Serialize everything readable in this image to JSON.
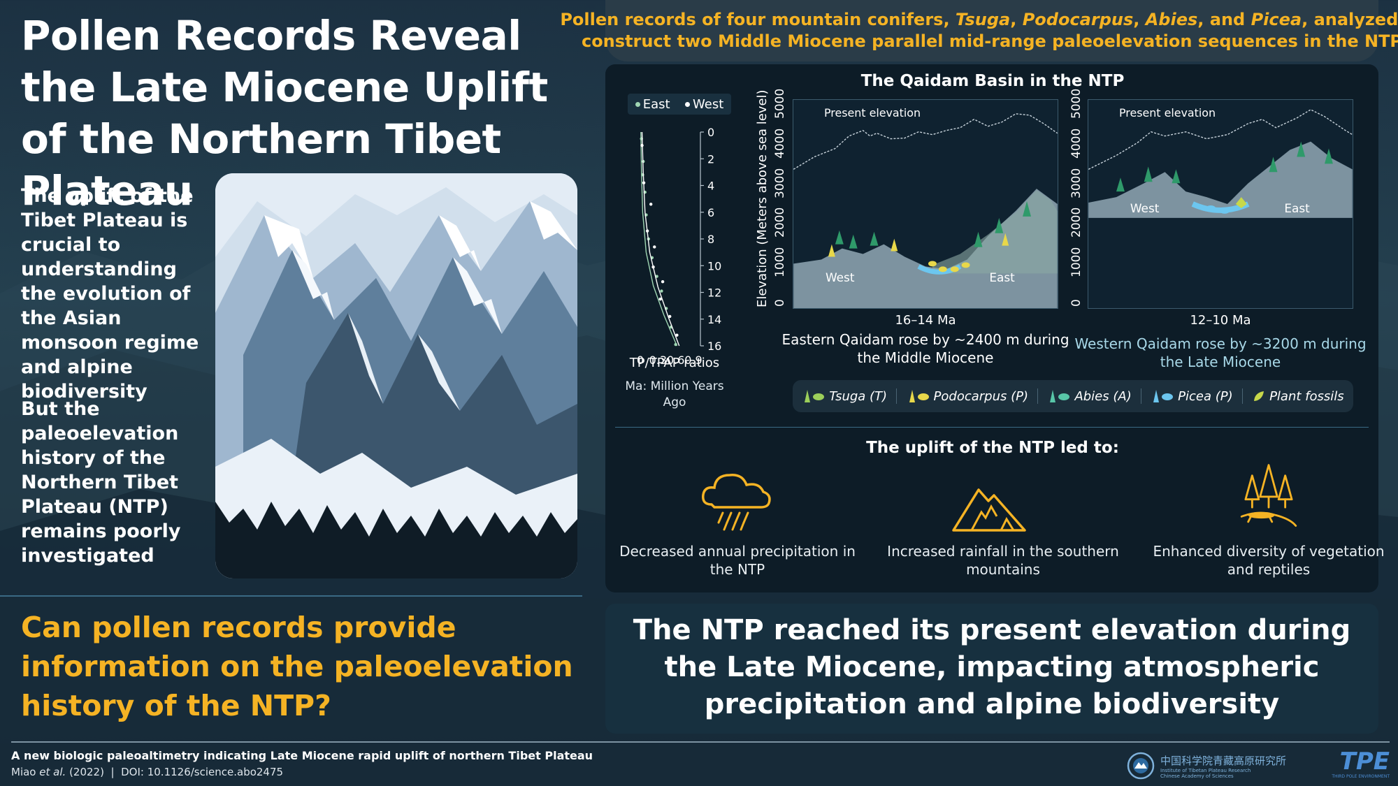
{
  "title": "Pollen Records Reveal the Late Miocene Uplift of the Northern Tibet Plateau",
  "intro": "The uplift of the Tibet Plateau is crucial to understanding the evolution of the Asian monsoon regime and alpine biodiversity",
  "intro_2": "But the paleoelevation history of the Northern Tibet Plateau (NTP) remains poorly investigated",
  "question": "Can pollen records provide information on the paleoelevation history of the NTP?",
  "header": {
    "line1_prefix": "Pollen records of four mountain conifers,",
    "taxa": [
      "Tsuga",
      "Podocarpus",
      "Abies",
      "Picea"
    ],
    "line1_and": "and",
    "line1_suffix": ", analyzed to",
    "line2": "construct two Middle Miocene parallel mid-range paleoelevation sequences in the NTP"
  },
  "basin_title": "The Qaidam Basin in the NTP",
  "ratio_chart": {
    "legend": [
      "East",
      "West"
    ],
    "x_ticks": [
      "0",
      "0.3",
      "0.6",
      "0.9"
    ],
    "y_ticks": [
      "0",
      "2",
      "4",
      "6",
      "8",
      "10",
      "12",
      "14",
      "16"
    ],
    "xlabel": "TP/TPAP ratios",
    "note": "Ma: Million Years Ago"
  },
  "chart_data": {
    "type": "scatter",
    "xlabel": "TP/TPAP ratios",
    "ylabel": "Ma",
    "xlim": [
      0,
      0.9
    ],
    "ylim": [
      0,
      16
    ],
    "y_inverted": true,
    "series": [
      {
        "name": "East",
        "points": [
          [
            0.02,
            0.5
          ],
          [
            0.05,
            2.2
          ],
          [
            0.04,
            3.2
          ],
          [
            0.08,
            4.5
          ],
          [
            0.1,
            6.2
          ],
          [
            0.14,
            8.0
          ],
          [
            0.2,
            9.4
          ],
          [
            0.28,
            10.8
          ],
          [
            0.36,
            11.9
          ],
          [
            0.44,
            13.2
          ],
          [
            0.52,
            14.6
          ],
          [
            0.6,
            15.9
          ]
        ],
        "trend": [
          [
            0.01,
            0
          ],
          [
            0.02,
            3
          ],
          [
            0.04,
            6
          ],
          [
            0.1,
            9
          ],
          [
            0.22,
            11.5
          ],
          [
            0.4,
            13.7
          ],
          [
            0.62,
            16
          ]
        ]
      },
      {
        "name": "West",
        "points": [
          [
            0.03,
            1.0
          ],
          [
            0.06,
            3.8
          ],
          [
            0.18,
            5.4
          ],
          [
            0.12,
            7.4
          ],
          [
            0.24,
            8.6
          ],
          [
            0.22,
            10.1
          ],
          [
            0.38,
            11.2
          ],
          [
            0.34,
            12.5
          ],
          [
            0.5,
            13.8
          ],
          [
            0.62,
            15.2
          ]
        ],
        "trend": [
          [
            0.03,
            0
          ],
          [
            0.05,
            3
          ],
          [
            0.08,
            6
          ],
          [
            0.16,
            9
          ],
          [
            0.3,
            11.6
          ],
          [
            0.48,
            13.9
          ],
          [
            0.66,
            16
          ]
        ]
      }
    ]
  },
  "elevation_chart": {
    "ylabel": "Elevation (Meters above sea level)",
    "y_ticks": [
      "0",
      "1000",
      "2000",
      "3000",
      "4000",
      "5000"
    ],
    "present_label": "Present elevation",
    "east_panel": {
      "left": "West",
      "right": "East",
      "period": "16–14 Ma",
      "caption": "Eastern Qaidam rose by ~2400 m during the Middle Miocene"
    },
    "west_panel": {
      "left": "West",
      "right": "East",
      "period": "12–10 Ma",
      "caption": "Western Qaidam rose by ~3200 m during the Late Miocene"
    }
  },
  "pollen_legend": [
    {
      "label": "Tsuga (T)",
      "color": "#9ccf5a"
    },
    {
      "label": "Podocarpus (P)",
      "color": "#e8d84a"
    },
    {
      "label": "Abies (A)",
      "color": "#58c6a8"
    },
    {
      "label": "Picea (P)",
      "color": "#6cc6ef"
    },
    {
      "label": "Plant fossils",
      "color": "#c7d84a"
    }
  ],
  "uplift_title": "The uplift of the NTP led to:",
  "effects": [
    {
      "icon": "rain-cloud-icon",
      "label": "Decreased annual precipitation in the NTP"
    },
    {
      "icon": "mountain-icon",
      "label": "Increased rainfall in the southern mountains"
    },
    {
      "icon": "tree-lizard-icon",
      "label": "Enhanced diversity of vegetation and reptiles"
    }
  ],
  "conclusion": "The NTP reached its present elevation during the Late Miocene, impacting atmospheric precipitation and alpine biodiversity",
  "footer": {
    "title": "A new biologic paleoaltimetry indicating Late Miocene rapid uplift of northern Tibet Plateau",
    "authors": "Miao",
    "etal": "et al.",
    "year": "(2022)",
    "separator": "|",
    "doi": "DOI: 10.1126/science.abo2475"
  },
  "logos": {
    "institute_cn": "中国科学院青藏高原研究所",
    "institute_en_1": "Institute of Tibetan Plateau Research",
    "institute_en_2": "Chinese Academy of Sciences",
    "tpe": "TPE",
    "tpe_sub": "THIRD POLE ENVIRONMENT"
  },
  "colors": {
    "accent_yellow": "#f5b324",
    "panel": "#0d1c27",
    "east_series": "#9fd6b3",
    "west_series": "#ffffff"
  }
}
